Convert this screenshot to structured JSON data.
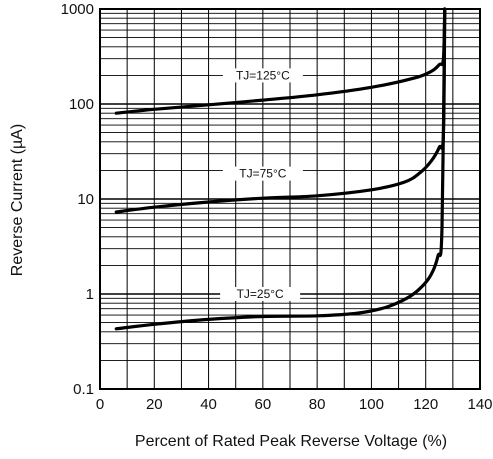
{
  "chart_data": {
    "type": "line",
    "title": "",
    "xlabel": "Percent of Rated Peak Reverse Voltage (%)",
    "ylabel": "Reverse Current (µA)",
    "xlim": [
      0,
      140
    ],
    "ylim": [
      0.1,
      1000
    ],
    "y_scale": "log",
    "grid": true,
    "x_ticks": [
      "0",
      "20",
      "40",
      "60",
      "80",
      "100",
      "120",
      "140"
    ],
    "y_ticks": [
      "0.1",
      "1",
      "10",
      "100",
      "1000"
    ],
    "series": [
      {
        "name": "TJ=125°C",
        "x": [
          6,
          20,
          40,
          60,
          80,
          100,
          115,
          122,
          125,
          126.5,
          127
        ],
        "values": [
          80,
          88,
          98,
          110,
          125,
          150,
          185,
          220,
          260,
          300,
          1000
        ]
      },
      {
        "name": "TJ=75°C",
        "x": [
          6,
          20,
          40,
          60,
          80,
          100,
          112,
          118,
          122,
          125,
          126.5,
          127
        ],
        "values": [
          7.3,
          8.2,
          9.3,
          10.2,
          10.8,
          12.5,
          15,
          19,
          25,
          35,
          48,
          1000
        ]
      },
      {
        "name": "TJ=25°C",
        "x": [
          6,
          20,
          40,
          60,
          80,
          95,
          105,
          113,
          118,
          122,
          124.5,
          126,
          127
        ],
        "values": [
          0.43,
          0.48,
          0.54,
          0.58,
          0.59,
          0.63,
          0.72,
          0.9,
          1.15,
          1.6,
          2.5,
          5,
          1000
        ]
      }
    ],
    "labels": [
      {
        "text": "TJ=125°C",
        "x": 60,
        "y": 200
      },
      {
        "text": "TJ=75°C",
        "x": 60,
        "y": 18.5
      },
      {
        "text": "TJ=25°C",
        "x": 59,
        "y": 1.0
      }
    ]
  }
}
